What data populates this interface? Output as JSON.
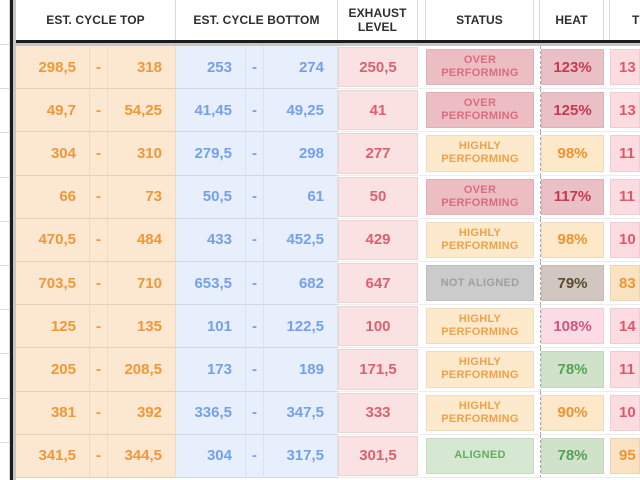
{
  "header": {
    "est_cycle_top": "EST. CYCLE TOP",
    "est_cycle_bottom": "EST. CYCLE BOTTOM",
    "exhaust_level": "EXHAUST LEVEL",
    "status": "STATUS",
    "heat": "HEAT",
    "next_column_partial": "T"
  },
  "dash": "-",
  "palette": {
    "top": {
      "bg": "#fce7d0",
      "fg": "#ef9838"
    },
    "bottom": {
      "bg": "#e7effc",
      "fg": "#74a0ee"
    },
    "exhaust": {
      "bg": "#fae2e2",
      "fg": "#dd606f"
    },
    "status_over": {
      "bg": "#edbdc4",
      "fg": "#dc6c80"
    },
    "status_highly": {
      "bg": "#fdeacd",
      "fg": "#efa149"
    },
    "status_not_aligned": {
      "bg": "#cbcbcb",
      "fg": "#a0a0a0"
    },
    "status_aligned": {
      "bg": "#d6e8d1",
      "fg": "#65ab61"
    },
    "heat_hot": {
      "bg": "#eabfc6",
      "fg": "#c53a50"
    },
    "heat_warm": {
      "bg": "#fde8ca",
      "fg": "#ee9332"
    },
    "heat_neutral": {
      "bg": "#d1c7c0",
      "fg": "#5d4a2e"
    },
    "heat_mild": {
      "bg": "#fcdce4",
      "fg": "#d6537b"
    },
    "heat_good": {
      "bg": "#d0e3ca",
      "fg": "#56a156"
    },
    "trail_pink": {
      "bg": "#fcdce1",
      "fg": "#e25669"
    },
    "trail_warm": {
      "bg": "#fbe2c3",
      "fg": "#ee9535"
    }
  },
  "rows": [
    {
      "top_low": "298,5",
      "top_high": "318",
      "bottom_low": "253",
      "bottom_high": "274",
      "exhaust": "250,5",
      "status": "OVER PERFORMING",
      "status_style": "status_over",
      "heat": "123%",
      "heat_style": "heat_hot",
      "trail": "13",
      "trail_style": "trail_pink"
    },
    {
      "top_low": "49,7",
      "top_high": "54,25",
      "bottom_low": "41,45",
      "bottom_high": "49,25",
      "exhaust": "41",
      "status": "OVER PERFORMING",
      "status_style": "status_over",
      "heat": "125%",
      "heat_style": "heat_hot",
      "trail": "13",
      "trail_style": "trail_pink"
    },
    {
      "top_low": "304",
      "top_high": "310",
      "bottom_low": "279,5",
      "bottom_high": "298",
      "exhaust": "277",
      "status": "HIGHLY PERFORMING",
      "status_style": "status_highly",
      "heat": "98%",
      "heat_style": "heat_warm",
      "trail": "11",
      "trail_style": "trail_pink"
    },
    {
      "top_low": "66",
      "top_high": "73",
      "bottom_low": "50,5",
      "bottom_high": "61",
      "exhaust": "50",
      "status": "OVER PERFORMING",
      "status_style": "status_over",
      "heat": "117%",
      "heat_style": "heat_hot",
      "trail": "11",
      "trail_style": "trail_pink"
    },
    {
      "top_low": "470,5",
      "top_high": "484",
      "bottom_low": "433",
      "bottom_high": "452,5",
      "exhaust": "429",
      "status": "HIGHLY PERFORMING",
      "status_style": "status_highly",
      "heat": "98%",
      "heat_style": "heat_warm",
      "trail": "10",
      "trail_style": "trail_pink"
    },
    {
      "top_low": "703,5",
      "top_high": "710",
      "bottom_low": "653,5",
      "bottom_high": "682",
      "exhaust": "647",
      "status": "NOT ALIGNED",
      "status_style": "status_not_aligned",
      "heat": "79%",
      "heat_style": "heat_neutral",
      "trail": "83",
      "trail_style": "trail_warm"
    },
    {
      "top_low": "125",
      "top_high": "135",
      "bottom_low": "101",
      "bottom_high": "122,5",
      "exhaust": "100",
      "status": "HIGHLY PERFORMING",
      "status_style": "status_highly",
      "heat": "108%",
      "heat_style": "heat_mild",
      "trail": "14",
      "trail_style": "trail_pink"
    },
    {
      "top_low": "205",
      "top_high": "208,5",
      "bottom_low": "173",
      "bottom_high": "189",
      "exhaust": "171,5",
      "status": "HIGHLY PERFORMING",
      "status_style": "status_highly",
      "heat": "78%",
      "heat_style": "heat_good",
      "trail": "11",
      "trail_style": "trail_pink"
    },
    {
      "top_low": "381",
      "top_high": "392",
      "bottom_low": "336,5",
      "bottom_high": "347,5",
      "exhaust": "333",
      "status": "HIGHLY PERFORMING",
      "status_style": "status_highly",
      "heat": "90%",
      "heat_style": "heat_warm",
      "trail": "10",
      "trail_style": "trail_pink"
    },
    {
      "top_low": "341,5",
      "top_high": "344,5",
      "bottom_low": "304",
      "bottom_high": "317,5",
      "exhaust": "301,5",
      "status": "ALIGNED",
      "status_style": "status_aligned",
      "heat": "78%",
      "heat_style": "heat_good",
      "trail": "95",
      "trail_style": "trail_warm"
    }
  ]
}
